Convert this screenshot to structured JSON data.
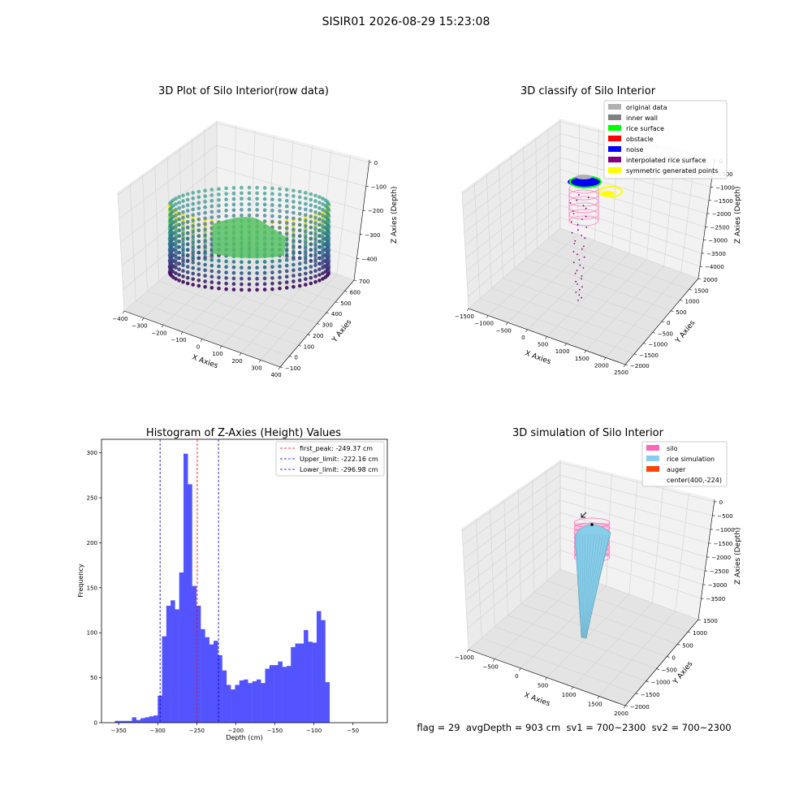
{
  "figure_title": "SISIR01 2026-08-29 15:23:08",
  "footer_text": "flag = 29  avgDepth = 903 cm  sv1 = 700~2300  sv2 = 700~2300",
  "colors": {
    "hist_bar": "#4b4bff",
    "first_peak_line": "#ff0000",
    "limit_lines": "#0000cc",
    "viridis_dark": "#440154",
    "viridis_mid": "#21918c",
    "viridis_light": "#fde725",
    "silo": "#ff69b4",
    "rice_simulation": "#87ceeb",
    "auger": "#ff4500"
  },
  "chart_data": [
    {
      "type": "scatter3d",
      "title": "3D Plot of Silo Interior(row data)",
      "xlabel": "X Axies",
      "ylabel": "Y Axies",
      "zlabel": "Z Axies (Depth)",
      "x_ticks": [
        "−400",
        "−300",
        "−200",
        "−100",
        "0",
        "100",
        "200",
        "300",
        "400"
      ],
      "y_ticks": [
        "−100",
        "0",
        "100",
        "200",
        "300",
        "400",
        "500",
        "600",
        "700"
      ],
      "z_ticks": [
        "0",
        "−100",
        "−200",
        "−300",
        "−400"
      ],
      "xlim": [
        -400,
        400
      ],
      "ylim": [
        -100,
        700
      ],
      "zlim": [
        -450,
        0
      ],
      "colormap": "viridis",
      "description_shape": "ring of points forming a silo wall with an inner rice surface"
    },
    {
      "type": "scatter3d",
      "title": "3D classify of Silo Interior",
      "x_ticks": [
        "−1500",
        "−1000",
        "−500",
        "0",
        "500",
        "1000",
        "1500",
        "2000",
        "2500"
      ],
      "y_ticks": [
        "−2000",
        "−1500",
        "−1000",
        "−500",
        "0",
        "500",
        "1000",
        "1500",
        "2000"
      ],
      "z_ticks": [
        "0",
        "−500",
        "−1000",
        "−1500",
        "−2000",
        "−2500",
        "−3000",
        "−3500",
        "−4000"
      ],
      "xlabel": "X Axies",
      "ylabel": "Y Axies",
      "zlabel": "Z Axies (Depth)",
      "legend": [
        {
          "label": "original data",
          "color": "#b0b0b0"
        },
        {
          "label": "inner wall",
          "color": "#808080"
        },
        {
          "label": "rice surface",
          "color": "#00ff00"
        },
        {
          "label": "obstacle",
          "color": "#ff0000"
        },
        {
          "label": "noise",
          "color": "#0000ff"
        },
        {
          "label": "interpolated rice surface",
          "color": "#800080"
        },
        {
          "label": "symmetric generated points",
          "color": "#ffff00"
        }
      ],
      "legend_position": "top-right"
    },
    {
      "type": "histogram",
      "title": "Histogram of Z-Axies (Height) Values",
      "xlabel": "Depth (cm)",
      "ylabel": "Frequency",
      "xlim": [
        -372,
        -6
      ],
      "ylim": [
        0,
        315
      ],
      "x_ticks": [
        -350,
        -300,
        -250,
        -200,
        -150,
        -100,
        -50
      ],
      "x_tick_labels": [
        "−350",
        "−300",
        "−250",
        "−200",
        "−150",
        "−100",
        "−50"
      ],
      "y_ticks": [
        0,
        50,
        100,
        150,
        200,
        250,
        300
      ],
      "bin_start": -355,
      "bin_width": 5.5,
      "values": [
        2,
        2,
        2,
        2,
        6,
        3,
        5,
        6,
        7,
        8,
        30,
        96,
        130,
        136,
        126,
        167,
        299,
        265,
        152,
        130,
        104,
        95,
        87,
        91,
        75,
        58,
        42,
        37,
        42,
        47,
        48,
        44,
        46,
        48,
        44,
        60,
        64,
        64,
        68,
        62,
        63,
        84,
        88,
        88,
        103,
        90,
        89,
        124,
        114,
        45
      ],
      "vlines": [
        {
          "label": "first_peak: -249.37 cm",
          "x": -249.37,
          "style": "red"
        },
        {
          "label": "Upper_limit: -222.16 cm",
          "x": -222.16,
          "style": "blue"
        },
        {
          "label": "Lower_limit: -296.98 cm",
          "x": -296.98,
          "style": "blue"
        }
      ],
      "legend_position": "top-right"
    },
    {
      "type": "surface3d",
      "title": "3D simulation of Silo Interior",
      "xlabel": "X Axies",
      "ylabel": "Y Axies",
      "zlabel": "Z Axies (Depth)",
      "x_ticks": [
        "−1000",
        "−500",
        "0",
        "500",
        "1000",
        "1500",
        "2000"
      ],
      "y_ticks": [
        "−2000",
        "−1500",
        "−1000",
        "−500",
        "0",
        "500",
        "1000",
        "1500"
      ],
      "z_ticks": [
        "0",
        "−500",
        "−1000",
        "−1500",
        "−2000",
        "−2500",
        "−3000",
        "−3500"
      ],
      "legend": [
        {
          "label": "silo",
          "color": "#ff69b4"
        },
        {
          "label": "rice simulation",
          "color": "#87ceeb"
        },
        {
          "label": "auger",
          "color": "#ff4500"
        },
        {
          "label": "center(400,-224)",
          "color": ""
        }
      ],
      "legend_position": "top-right"
    }
  ]
}
